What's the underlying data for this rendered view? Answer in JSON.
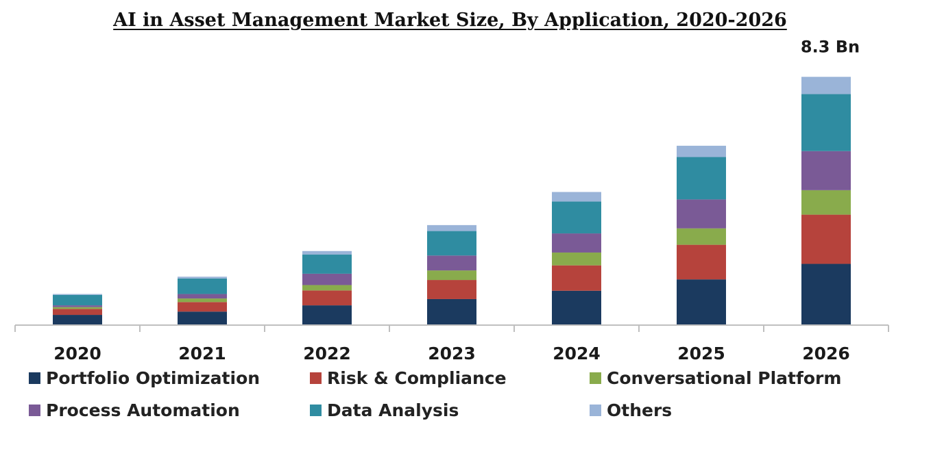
{
  "chart_data": {
    "type": "bar",
    "stacked": true,
    "title": "AI in Asset Management Market Size, By Application, 2020-2026",
    "xlabel": "",
    "ylabel": "",
    "ylim": [
      0,
      9.04
    ],
    "grid": false,
    "legend_position": "bottom",
    "categories": [
      "2020",
      "2021",
      "2022",
      "2023",
      "2024",
      "2025",
      "2026"
    ],
    "series": [
      {
        "name": "Portfolio Optimization",
        "color": "#1b3a5f",
        "values": [
          0.32,
          0.43,
          0.64,
          0.85,
          1.13,
          1.51,
          2.03
        ]
      },
      {
        "name": "Risk & Compliance",
        "color": "#b6433c",
        "values": [
          0.2,
          0.32,
          0.5,
          0.64,
          0.85,
          1.16,
          1.65
        ]
      },
      {
        "name": "Conversational Platform",
        "color": "#89ab4c",
        "values": [
          0.06,
          0.12,
          0.18,
          0.32,
          0.43,
          0.55,
          0.82
        ]
      },
      {
        "name": "Process Automation",
        "color": "#7a5a96",
        "values": [
          0.06,
          0.15,
          0.38,
          0.5,
          0.64,
          0.97,
          1.31
        ]
      },
      {
        "name": "Data Analysis",
        "color": "#2f8ca1",
        "values": [
          0.35,
          0.52,
          0.64,
          0.82,
          1.07,
          1.42,
          1.91
        ]
      },
      {
        "name": "Others",
        "color": "#9ab4d8",
        "values": [
          0.03,
          0.06,
          0.12,
          0.2,
          0.32,
          0.38,
          0.58
        ]
      }
    ],
    "annotations": [
      {
        "category": "2026",
        "text": "8.3 Bn"
      }
    ]
  }
}
